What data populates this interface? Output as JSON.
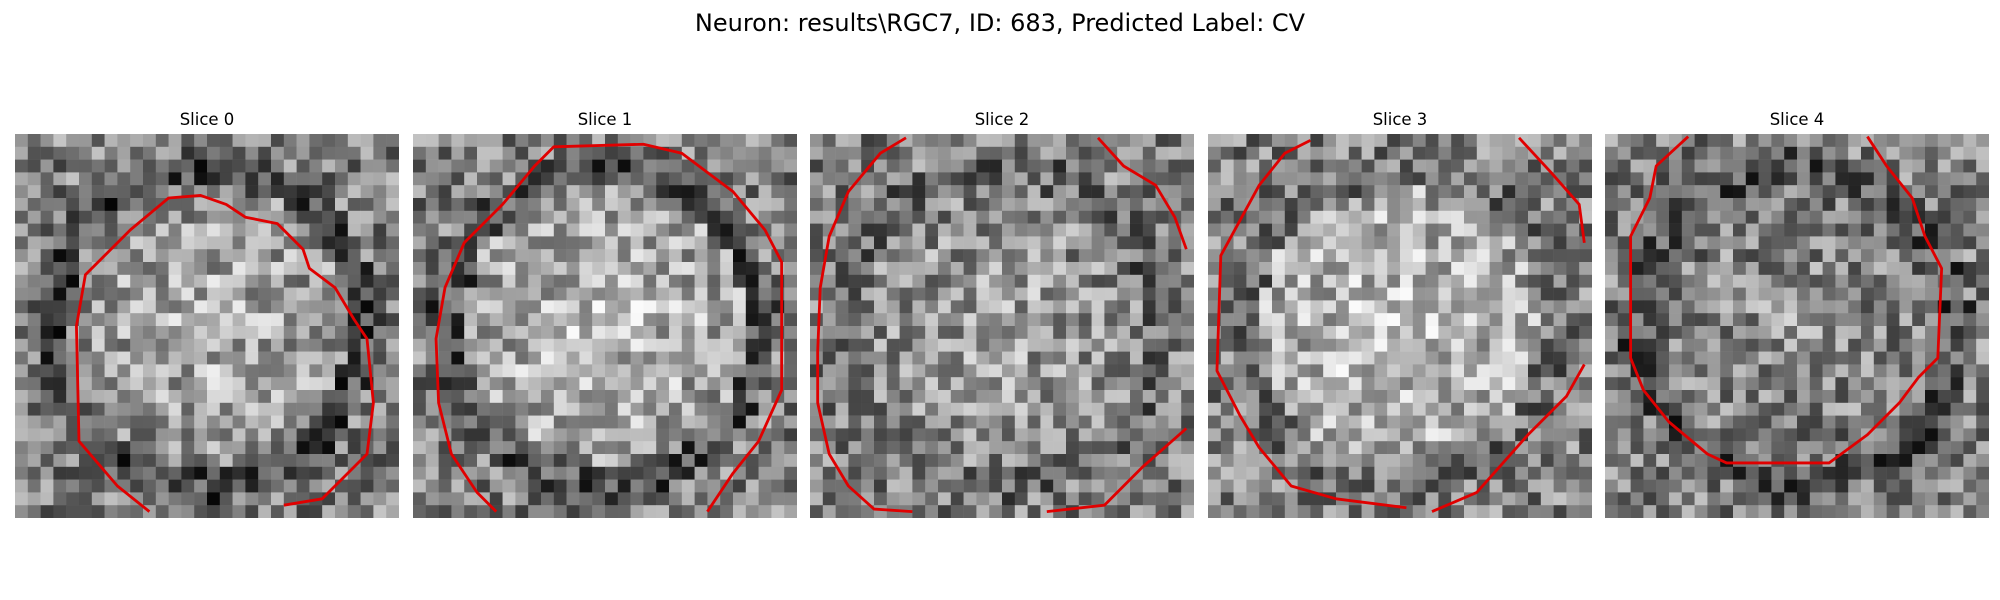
{
  "figure": {
    "title": "Neuron: results\\RGC7, ID: 683, Predicted Label: CV"
  },
  "panels": [
    {
      "title": "Slice 0",
      "center_brightness": 0.7,
      "rim_darkness": 0.35
    },
    {
      "title": "Slice 1",
      "center_brightness": 0.75,
      "rim_darkness": 0.3
    },
    {
      "title": "Slice 2",
      "center_brightness": 0.65,
      "rim_darkness": 0.15
    },
    {
      "title": "Slice 3",
      "center_brightness": 0.78,
      "rim_darkness": 0.1
    },
    {
      "title": "Slice 4",
      "center_brightness": 0.6,
      "rim_darkness": 0.3
    }
  ],
  "colors": {
    "contour": "#e00000",
    "background": "#ffffff",
    "text": "#000000"
  }
}
